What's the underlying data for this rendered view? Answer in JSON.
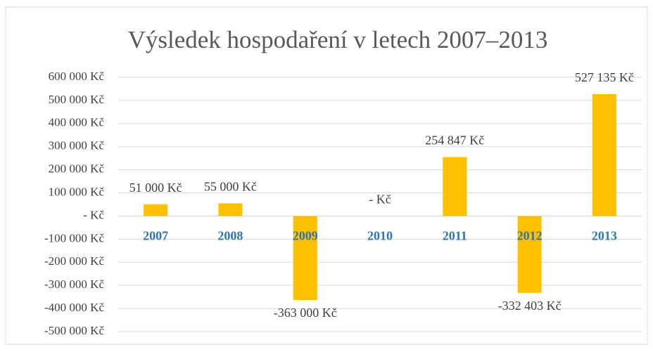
{
  "chart_data": {
    "type": "bar",
    "title": "Výsledek hospodaření v letech 2007–2013",
    "categories": [
      "2007",
      "2008",
      "2009",
      "2010",
      "2011",
      "2012",
      "2013"
    ],
    "values": [
      51000,
      55000,
      -363000,
      0,
      254847,
      -332403,
      527135
    ],
    "value_labels": [
      "51 000 Kč",
      "55 000 Kč",
      "-363 000 Kč",
      "-   Kč",
      "254 847 Kč",
      "-332 403 Kč",
      "527 135 Kč"
    ],
    "color": "#ffc000",
    "ylim": [
      -500000,
      600000
    ],
    "yticks": [
      {
        "value": 600000,
        "label": "600 000 Kč"
      },
      {
        "value": 500000,
        "label": "500 000 Kč"
      },
      {
        "value": 400000,
        "label": "400 000 Kč"
      },
      {
        "value": 300000,
        "label": "300 000 Kč"
      },
      {
        "value": 200000,
        "label": "200 000 Kč"
      },
      {
        "value": 100000,
        "label": "100 000 Kč"
      },
      {
        "value": 0,
        "label": "-   Kč"
      },
      {
        "value": -100000,
        "label": "-100 000 Kč"
      },
      {
        "value": -200000,
        "label": "-200 000 Kč"
      },
      {
        "value": -300000,
        "label": "-300 000 Kč"
      },
      {
        "value": -400000,
        "label": "-400 000 Kč"
      },
      {
        "value": -500000,
        "label": "-500 000 Kč"
      }
    ],
    "grid": true
  }
}
